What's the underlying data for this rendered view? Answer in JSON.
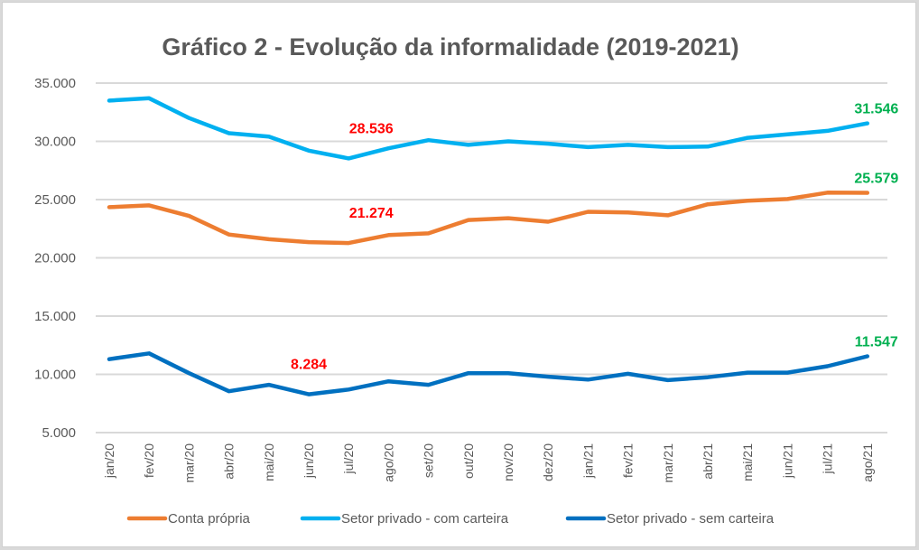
{
  "chart_data": {
    "type": "line",
    "title": "Gráfico 2 - Evolução da informalidade (2019-2021)",
    "xlabel": "",
    "ylabel": "",
    "ylim": [
      5000,
      35000
    ],
    "yticks": [
      5000,
      10000,
      15000,
      20000,
      25000,
      30000,
      35000
    ],
    "ytick_labels": [
      "5.000",
      "10.000",
      "15.000",
      "20.000",
      "25.000",
      "30.000",
      "35.000"
    ],
    "grid": true,
    "legend_position": "bottom",
    "categories": [
      "jan/20",
      "fev/20",
      "mar/20",
      "abr/20",
      "mai/20",
      "jun/20",
      "jul/20",
      "ago/20",
      "set/20",
      "out/20",
      "nov/20",
      "dez/20",
      "jan/21",
      "fev/21",
      "mar/21",
      "abr/21",
      "mai/21",
      "jun/21",
      "jul/21",
      "ago/21"
    ],
    "series": [
      {
        "name": "Conta própria",
        "color": "#ed7d31",
        "values": [
          24350,
          24500,
          23600,
          22000,
          21600,
          21350,
          21274,
          21950,
          22100,
          23250,
          23400,
          23100,
          23950,
          23900,
          23650,
          24600,
          24900,
          25050,
          25600,
          25579
        ]
      },
      {
        "name": "Setor privado - com carteira",
        "color": "#00b0f0",
        "values": [
          33500,
          33700,
          32000,
          30700,
          30400,
          29200,
          28536,
          29400,
          30100,
          29700,
          30000,
          29800,
          29500,
          29700,
          29500,
          29550,
          30300,
          30600,
          30900,
          31546
        ]
      },
      {
        "name": "Setor privado - sem carteira",
        "color": "#0070c0",
        "values": [
          11300,
          11800,
          10100,
          8550,
          9100,
          8284,
          8700,
          9400,
          9100,
          10100,
          10100,
          9800,
          9550,
          10050,
          9500,
          9750,
          10150,
          10150,
          10700,
          11547
        ]
      }
    ],
    "annotations": [
      {
        "series": 1,
        "category": "jul/20",
        "text": "28.536",
        "color": "#ff0000"
      },
      {
        "series": 0,
        "category": "jul/20",
        "text": "21.274",
        "color": "#ff0000"
      },
      {
        "series": 2,
        "category": "jun/20",
        "text": "8.284",
        "color": "#ff0000"
      },
      {
        "series": 1,
        "category": "ago/21",
        "text": "31.546",
        "color": "#00b050"
      },
      {
        "series": 0,
        "category": "ago/21",
        "text": "25.579",
        "color": "#00b050"
      },
      {
        "series": 2,
        "category": "ago/21",
        "text": "11.547",
        "color": "#00b050"
      }
    ]
  }
}
